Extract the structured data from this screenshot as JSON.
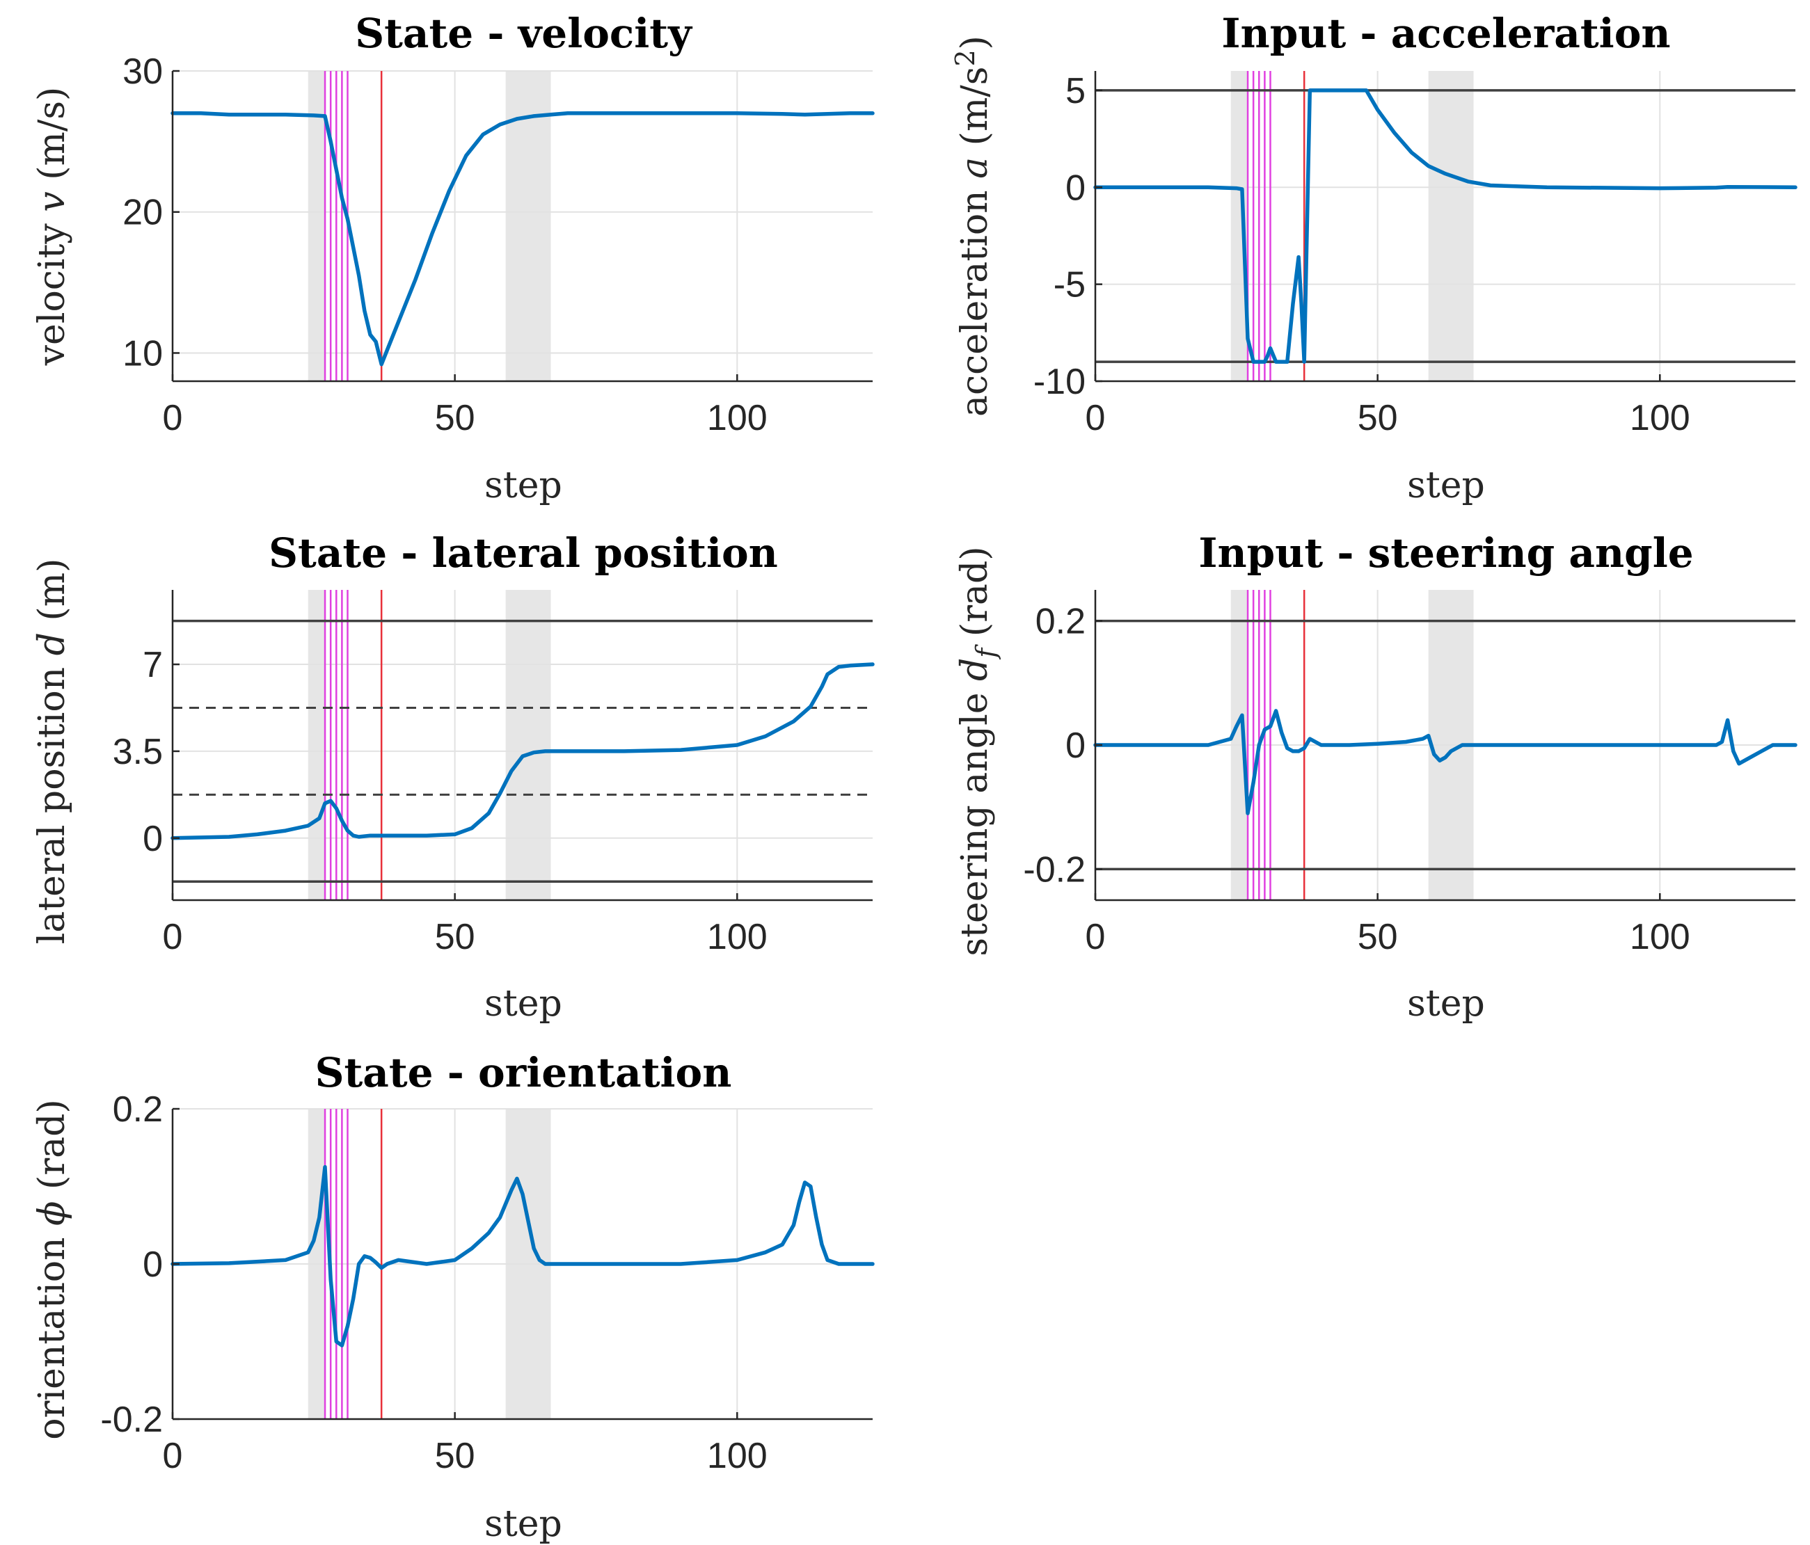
{
  "figure": {
    "background": "#ffffff"
  },
  "style": {
    "series_color": "#0072BD",
    "bound_color": "#404040",
    "shade_color": "#E6E6E6",
    "magenta": "#E040E0",
    "red": "#E8303A"
  },
  "chart_data": [
    {
      "id": "velocity",
      "type": "line",
      "title": "State - velocity",
      "xlabel": "step",
      "ylabel": "velocity v (m/s)",
      "xlim": [
        0,
        124
      ],
      "ylim": [
        8,
        30
      ],
      "xticks": [
        0,
        50,
        100
      ],
      "xtick_labels": [
        "0",
        "50",
        "100"
      ],
      "yticks": [
        10,
        20,
        30
      ],
      "ytick_labels": [
        "10",
        "20",
        "30"
      ],
      "grid": true,
      "shaded_regions": [
        [
          24,
          27
        ],
        [
          59,
          67
        ]
      ],
      "magenta_lines": [
        27,
        28,
        29,
        30,
        31
      ],
      "red_lines": [
        37
      ],
      "bounds_solid": [],
      "bounds_dashed": [],
      "series": [
        {
          "x": [
            0,
            5,
            10,
            15,
            20,
            25,
            27,
            28,
            29,
            30,
            31,
            32,
            33,
            34,
            35,
            36,
            37,
            38,
            40,
            43,
            46,
            49,
            52,
            55,
            58,
            61,
            64,
            67,
            70,
            75,
            80,
            90,
            100,
            108,
            112,
            116,
            120,
            124
          ],
          "y": [
            27,
            27,
            26.9,
            26.9,
            26.9,
            26.85,
            26.8,
            25,
            23,
            21,
            19.5,
            17.5,
            15.5,
            13,
            11.3,
            10.8,
            9.2,
            10.2,
            12.2,
            15.2,
            18.5,
            21.5,
            24,
            25.5,
            26.2,
            26.6,
            26.8,
            26.9,
            27,
            27,
            27,
            27,
            27,
            26.95,
            26.9,
            26.95,
            27,
            27
          ]
        }
      ]
    },
    {
      "id": "acceleration",
      "type": "line",
      "title": "Input - acceleration",
      "xlabel": "step",
      "ylabel": "acceleration a (m/s²)",
      "xlim": [
        0,
        124
      ],
      "ylim": [
        -10,
        6
      ],
      "xticks": [
        0,
        50,
        100
      ],
      "xtick_labels": [
        "0",
        "50",
        "100"
      ],
      "yticks": [
        -10,
        -5,
        0,
        5
      ],
      "ytick_labels": [
        "-10",
        "-5",
        "0",
        "5"
      ],
      "grid": true,
      "shaded_regions": [
        [
          24,
          27
        ],
        [
          59,
          67
        ]
      ],
      "magenta_lines": [
        27,
        28,
        29,
        30,
        31
      ],
      "red_lines": [
        37
      ],
      "bounds_solid": [
        5,
        -9
      ],
      "bounds_dashed": [],
      "series": [
        {
          "x": [
            0,
            10,
            20,
            25,
            26,
            27,
            28,
            29,
            30,
            30.5,
            31,
            32,
            33,
            34,
            35,
            36,
            36.5,
            37,
            38,
            40,
            45,
            48,
            50,
            53,
            56,
            59,
            62,
            66,
            70,
            80,
            100,
            110,
            112,
            124
          ],
          "y": [
            0,
            0,
            0,
            -0.05,
            -0.1,
            -7.8,
            -9,
            -9,
            -9,
            -8.7,
            -8.3,
            -9,
            -9,
            -9,
            -6,
            -3.6,
            -6,
            -9,
            5,
            5,
            5,
            5,
            4,
            2.8,
            1.8,
            1.1,
            0.7,
            0.3,
            0.1,
            0,
            -0.05,
            -0.02,
            0.02,
            0
          ]
        }
      ]
    },
    {
      "id": "lateral",
      "type": "line",
      "title": "State - lateral position",
      "xlabel": "step",
      "ylabel": "lateral position d (m)",
      "xlim": [
        0,
        124
      ],
      "ylim": [
        -2.5,
        10
      ],
      "xticks": [
        0,
        50,
        100
      ],
      "xtick_labels": [
        "0",
        "50",
        "100"
      ],
      "yticks": [
        0,
        3.5,
        7
      ],
      "ytick_labels": [
        "0",
        "3.5",
        "7"
      ],
      "grid": true,
      "shaded_regions": [
        [
          24,
          27
        ],
        [
          59,
          67
        ]
      ],
      "magenta_lines": [
        27,
        28,
        29,
        30,
        31
      ],
      "red_lines": [
        37
      ],
      "bounds_solid": [
        8.75,
        -1.75
      ],
      "bounds_dashed": [
        5.25,
        1.75
      ],
      "series": [
        {
          "x": [
            0,
            10,
            15,
            20,
            24,
            26,
            27,
            28,
            29,
            30,
            31,
            32,
            33,
            35,
            40,
            45,
            50,
            53,
            56,
            58,
            60,
            62,
            64,
            66,
            70,
            80,
            90,
            100,
            105,
            110,
            113,
            115,
            116,
            118,
            120,
            124
          ],
          "y": [
            0,
            0.05,
            0.15,
            0.3,
            0.5,
            0.8,
            1.4,
            1.5,
            1.2,
            0.7,
            0.3,
            0.1,
            0.05,
            0.1,
            0.1,
            0.1,
            0.15,
            0.4,
            1,
            1.8,
            2.7,
            3.3,
            3.45,
            3.5,
            3.5,
            3.5,
            3.55,
            3.75,
            4.1,
            4.7,
            5.3,
            6.1,
            6.6,
            6.9,
            6.95,
            7
          ]
        }
      ]
    },
    {
      "id": "steering",
      "type": "line",
      "title": "Input - steering angle",
      "xlabel": "step",
      "ylabel": "steering angle d_f (rad)",
      "xlim": [
        0,
        124
      ],
      "ylim": [
        -0.25,
        0.25
      ],
      "xticks": [
        0,
        50,
        100
      ],
      "xtick_labels": [
        "0",
        "50",
        "100"
      ],
      "yticks": [
        -0.2,
        0,
        0.2
      ],
      "ytick_labels": [
        "-0.2",
        "0",
        "0.2"
      ],
      "grid": true,
      "shaded_regions": [
        [
          24,
          27
        ],
        [
          59,
          67
        ]
      ],
      "magenta_lines": [
        27,
        28,
        29,
        30,
        31
      ],
      "red_lines": [
        37
      ],
      "bounds_solid": [
        0.2,
        -0.2
      ],
      "bounds_dashed": [],
      "series": [
        {
          "x": [
            0,
            10,
            20,
            24,
            25,
            26,
            27,
            28,
            29,
            30,
            31,
            32,
            33,
            34,
            35,
            36,
            37,
            38,
            40,
            45,
            50,
            55,
            58,
            59,
            60,
            61,
            62,
            63,
            65,
            70,
            90,
            105,
            110,
            111,
            112,
            113,
            114,
            115,
            116,
            118,
            120,
            124
          ],
          "y": [
            0,
            0,
            0,
            0.01,
            0.03,
            0.048,
            -0.11,
            -0.06,
            0,
            0.025,
            0.03,
            0.055,
            0.02,
            -0.005,
            -0.01,
            -0.01,
            -0.005,
            0.01,
            0,
            0,
            0.002,
            0.005,
            0.01,
            0.015,
            -0.015,
            -0.025,
            -0.02,
            -0.01,
            0,
            0,
            0,
            0,
            0,
            0.005,
            0.04,
            -0.01,
            -0.03,
            -0.025,
            -0.02,
            -0.01,
            0,
            0
          ]
        }
      ]
    },
    {
      "id": "orientation",
      "type": "line",
      "title": "State - orientation",
      "xlabel": "step",
      "ylabel": "orientation ϕ (rad)",
      "xlim": [
        0,
        124
      ],
      "ylim": [
        -0.2,
        0.2
      ],
      "xticks": [
        0,
        50,
        100
      ],
      "xtick_labels": [
        "0",
        "50",
        "100"
      ],
      "yticks": [
        -0.2,
        0,
        0.2
      ],
      "ytick_labels": [
        "-0.2",
        "0",
        "0.2"
      ],
      "grid": true,
      "shaded_regions": [
        [
          24,
          27
        ],
        [
          59,
          67
        ]
      ],
      "magenta_lines": [
        27,
        28,
        29,
        30,
        31
      ],
      "red_lines": [
        37
      ],
      "bounds_solid": [],
      "bounds_dashed": [],
      "series": [
        {
          "x": [
            0,
            10,
            20,
            24,
            25,
            26,
            27,
            28,
            29,
            30,
            31,
            32,
            33,
            34,
            35,
            36,
            37,
            38,
            40,
            45,
            50,
            53,
            56,
            58,
            60,
            61,
            62,
            63,
            64,
            65,
            66,
            70,
            90,
            100,
            105,
            108,
            110,
            111,
            112,
            113,
            114,
            115,
            116,
            118,
            120,
            124
          ],
          "y": [
            0,
            0.001,
            0.005,
            0.015,
            0.03,
            0.06,
            0.125,
            -0.02,
            -0.1,
            -0.105,
            -0.08,
            -0.045,
            0,
            0.01,
            0.008,
            0.002,
            -0.005,
            0,
            0.005,
            0,
            0.005,
            0.02,
            0.04,
            0.06,
            0.095,
            0.11,
            0.09,
            0.055,
            0.02,
            0.005,
            0,
            0,
            0,
            0.005,
            0.015,
            0.025,
            0.05,
            0.08,
            0.105,
            0.1,
            0.06,
            0.025,
            0.005,
            0,
            0,
            0
          ]
        }
      ]
    }
  ]
}
